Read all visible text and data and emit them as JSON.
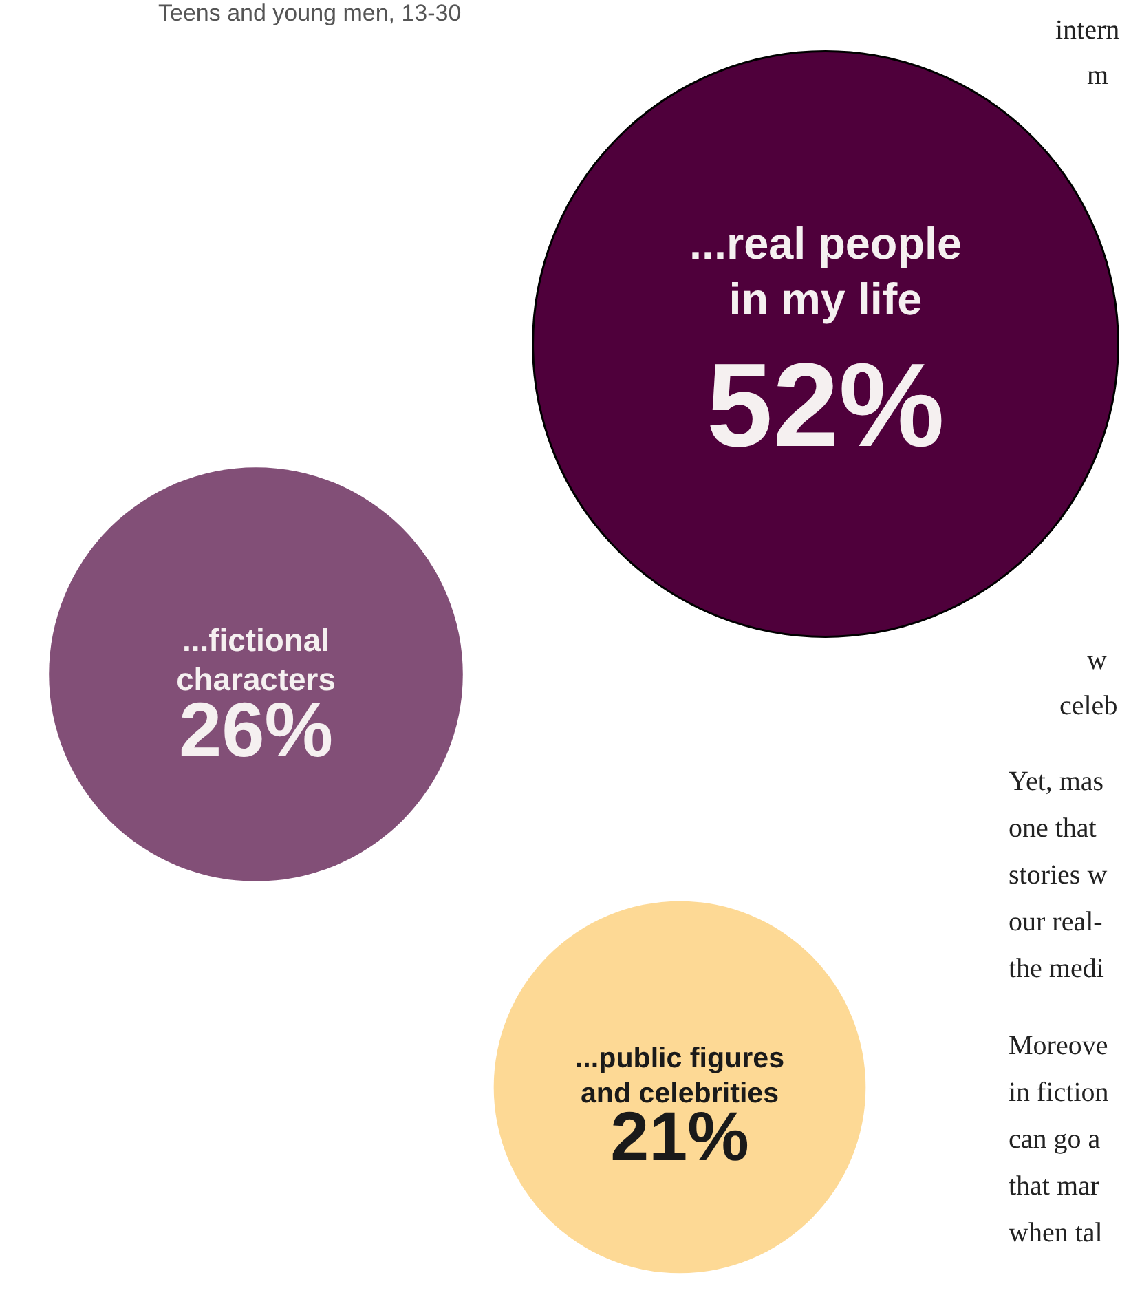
{
  "chart_data": {
    "type": "other",
    "subtitle": "Teens and young men, 13-30",
    "categories": [
      "...real people in my life",
      "...fictional characters",
      "...public figures and celebrities"
    ],
    "values": [
      52,
      26,
      21
    ],
    "value_labels": [
      "52%",
      "26%",
      "21%"
    ],
    "colors": [
      "#4f003b",
      "#824f77",
      "#fdd995"
    ],
    "annotations": [
      "intern",
      "m",
      "w",
      "celeb",
      "Yet, mas",
      "one that",
      "stories w",
      "our real-",
      "the medi",
      "Moreove",
      "in fiction",
      "can go a",
      "that mar",
      "when tal"
    ]
  }
}
